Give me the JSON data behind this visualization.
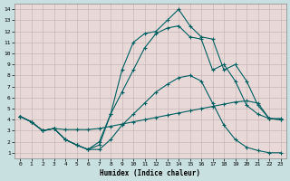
{
  "title": "",
  "xlabel": "Humidex (Indice chaleur)",
  "bg_color": "#c8e0e0",
  "plot_bg_color": "#e8d8d8",
  "line_color": "#006060",
  "grid_color": "#c0b0b0",
  "xlim": [
    -0.5,
    23.5
  ],
  "ylim": [
    0.5,
    14.5
  ],
  "xticks": [
    0,
    1,
    2,
    3,
    4,
    5,
    6,
    7,
    8,
    9,
    10,
    11,
    12,
    13,
    14,
    15,
    16,
    17,
    18,
    19,
    20,
    21,
    22,
    23
  ],
  "yticks": [
    1,
    2,
    3,
    4,
    5,
    6,
    7,
    8,
    9,
    10,
    11,
    12,
    13,
    14
  ],
  "line1_x": [
    0,
    1,
    2,
    3,
    4,
    5,
    6,
    7,
    8,
    9,
    10,
    11,
    12,
    13,
    14,
    15,
    16,
    17,
    18,
    19,
    20,
    21,
    22,
    23
  ],
  "line1_y": [
    4.3,
    3.8,
    3.0,
    3.2,
    3.1,
    3.1,
    3.1,
    3.2,
    3.4,
    3.6,
    3.8,
    4.0,
    4.2,
    4.4,
    4.6,
    4.8,
    5.0,
    5.2,
    5.4,
    5.6,
    5.7,
    5.5,
    4.1,
    4.1
  ],
  "line2_x": [
    0,
    1,
    2,
    3,
    4,
    5,
    6,
    7,
    8,
    9,
    10,
    11,
    12,
    13,
    14,
    15,
    16,
    17,
    18,
    19,
    20,
    21,
    22,
    23
  ],
  "line2_y": [
    4.3,
    3.8,
    3.0,
    3.2,
    2.2,
    1.7,
    1.3,
    1.3,
    2.2,
    3.5,
    4.5,
    5.5,
    6.5,
    7.2,
    7.8,
    8.0,
    7.5,
    5.5,
    3.5,
    2.2,
    1.5,
    1.2,
    1.0,
    1.0
  ],
  "line3_x": [
    0,
    1,
    2,
    3,
    4,
    5,
    6,
    7,
    8,
    9,
    10,
    11,
    12,
    13,
    14,
    15,
    16,
    17,
    18,
    19,
    20,
    21,
    22,
    23
  ],
  "line3_y": [
    4.3,
    3.8,
    3.0,
    3.2,
    2.2,
    1.7,
    1.3,
    2.0,
    4.5,
    6.5,
    8.5,
    10.5,
    11.8,
    12.3,
    12.5,
    11.5,
    11.3,
    8.5,
    9.0,
    7.5,
    5.3,
    4.5,
    4.1,
    4.0
  ],
  "line4_x": [
    0,
    1,
    2,
    3,
    4,
    5,
    6,
    7,
    8,
    9,
    10,
    11,
    12,
    13,
    14,
    15,
    16,
    17,
    18,
    19,
    20,
    21,
    22,
    23
  ],
  "line4_y": [
    4.3,
    3.8,
    3.0,
    3.2,
    2.2,
    1.7,
    1.3,
    1.7,
    4.5,
    8.5,
    11.0,
    11.8,
    12.0,
    13.0,
    14.0,
    12.5,
    11.5,
    11.3,
    8.5,
    9.0,
    7.5,
    5.3,
    4.1,
    4.0
  ]
}
